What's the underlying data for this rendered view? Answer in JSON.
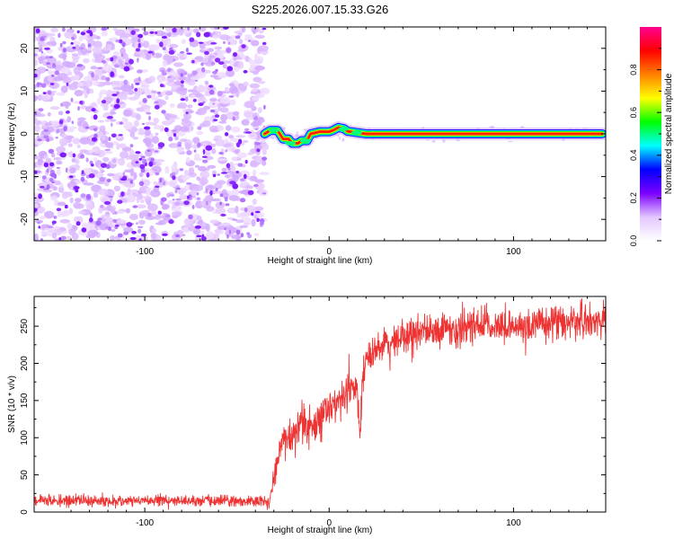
{
  "figure_title": "S225.2026.007.15.33.G26",
  "chart_data": [
    {
      "type": "heatmap",
      "title": "S225.2026.007.15.33.G26",
      "xlabel": "Height of straight line (km)",
      "ylabel": "Frequency (Hz)",
      "xlim": [
        -160,
        150
      ],
      "ylim": [
        -25,
        25
      ],
      "xticks": [
        -100,
        0,
        100
      ],
      "yticks": [
        -20,
        -10,
        0,
        10,
        20
      ],
      "colorbar": {
        "label": "Normalized spectral amplitude",
        "range": [
          0,
          1
        ],
        "ticks": [
          0.0,
          0.2,
          0.4,
          0.6,
          0.8
        ],
        "tick_labels": [
          "0.0",
          "0.2",
          "0.4",
          "0.6",
          "0.8"
        ],
        "colormap": [
          "#ffffff",
          "#e3c6ff",
          "#7b00ff",
          "#0000ff",
          "#00ffff",
          "#00ff00",
          "#ffff00",
          "#ff8000",
          "#ff0000",
          "#ff0090"
        ]
      },
      "noise_region": {
        "x": [
          -160,
          -35
        ],
        "freq": [
          -25,
          25
        ],
        "amplitude": [
          0.0,
          0.18
        ]
      },
      "signal_track": {
        "x": [
          -35,
          -32,
          -28,
          -25,
          -22,
          -20,
          -17,
          -15,
          -12,
          -10,
          -5,
          0,
          2,
          5,
          8,
          10,
          15,
          20,
          30,
          50,
          100,
          148
        ],
        "freq": [
          0,
          0.8,
          0.8,
          -1.2,
          -1.2,
          -2.2,
          -2.2,
          -1.6,
          -1.6,
          0,
          0.5,
          0.5,
          0.8,
          1.5,
          1.2,
          0.6,
          0.3,
          0,
          0,
          0,
          0,
          0
        ]
      }
    },
    {
      "type": "line",
      "title": "",
      "xlabel": "Height of straight line (km)",
      "ylabel": "SNR (10 * v/v)",
      "xlim": [
        -160,
        150
      ],
      "ylim": [
        0,
        290
      ],
      "xticks": [
        -100,
        0,
        100
      ],
      "yticks": [
        0,
        50,
        100,
        150,
        200,
        250
      ],
      "series": [
        {
          "name": "SNR",
          "color": "#ee3333",
          "x": [
            -160,
            -140,
            -120,
            -100,
            -80,
            -60,
            -40,
            -32,
            -30,
            -25,
            -20,
            -15,
            -10,
            -5,
            0,
            5,
            10,
            15,
            17,
            18,
            20,
            25,
            30,
            40,
            60,
            80,
            100,
            120,
            148
          ],
          "mean": [
            15,
            15,
            15,
            15,
            15,
            15,
            15,
            15,
            50,
            100,
            105,
            120,
            115,
            125,
            140,
            150,
            160,
            170,
            105,
            175,
            205,
            215,
            225,
            235,
            245,
            250,
            250,
            255,
            258
          ],
          "spread": [
            12,
            12,
            12,
            12,
            12,
            12,
            12,
            12,
            25,
            40,
            40,
            40,
            40,
            40,
            40,
            40,
            40,
            40,
            30,
            40,
            35,
            35,
            35,
            35,
            35,
            35,
            35,
            35,
            35
          ]
        }
      ]
    }
  ]
}
